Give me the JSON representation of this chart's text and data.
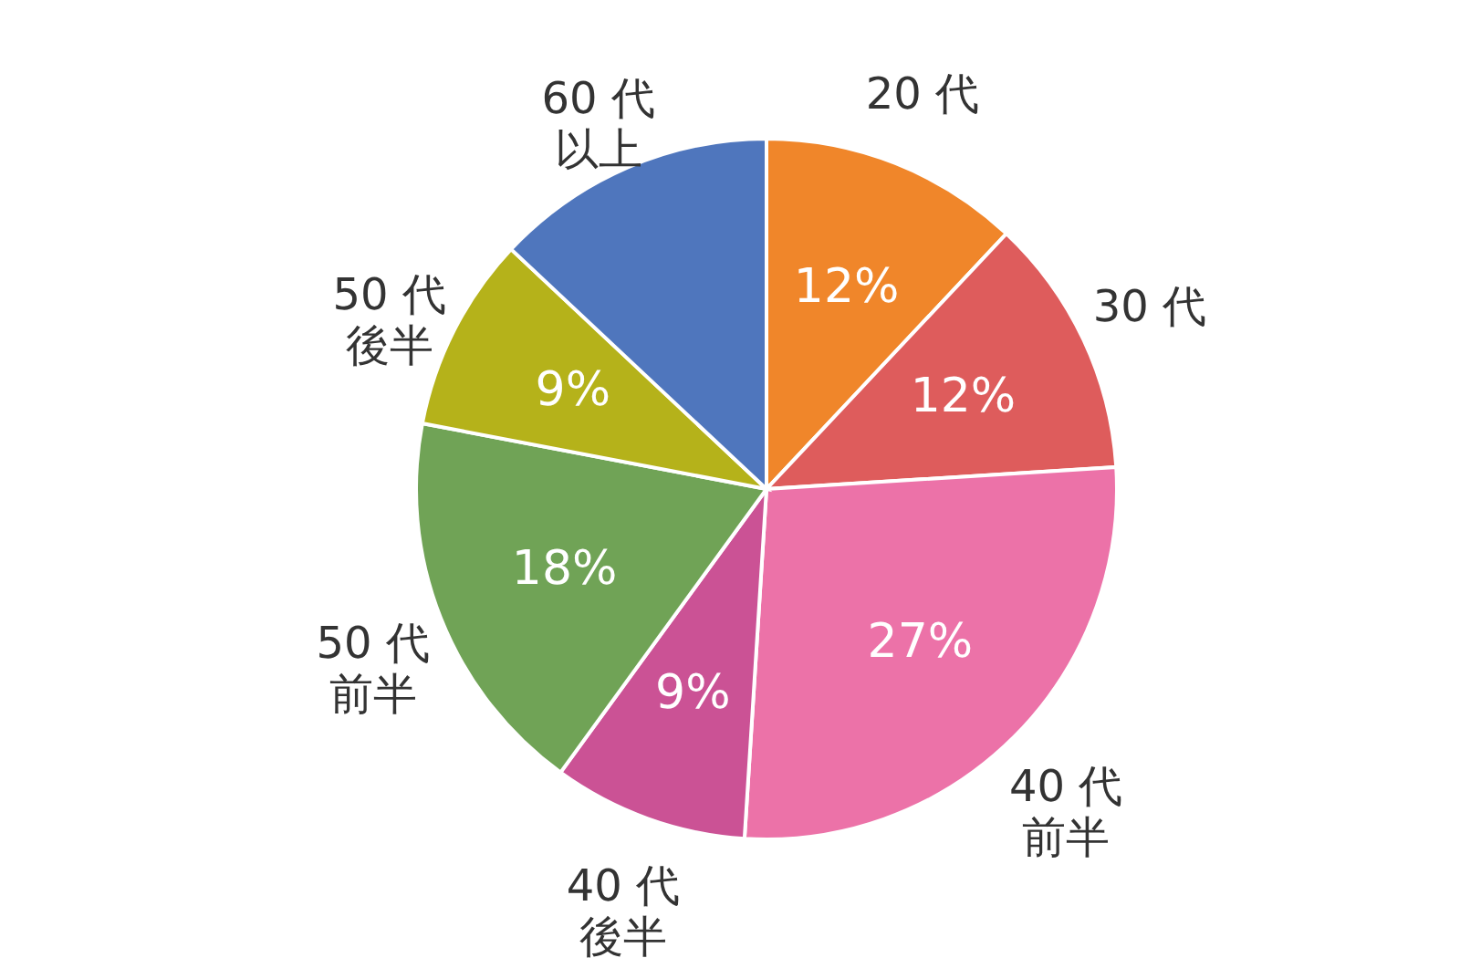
{
  "chart_data": {
    "type": "pie",
    "categories": [
      "20 代",
      "30 代",
      "40 代前半",
      "40 代後半",
      "50 代前半",
      "50 代後半",
      "60 代以上"
    ],
    "values": [
      12,
      12,
      27,
      9,
      18,
      9,
      13
    ],
    "value_labels": [
      "12%",
      "12%",
      "27%",
      "9%",
      "18%",
      "9%",
      null
    ],
    "colors": [
      "#f0862a",
      "#de5c5c",
      "#ec72a8",
      "#cb5295",
      "#70a356",
      "#b5b21a",
      "#4f76bd"
    ]
  }
}
